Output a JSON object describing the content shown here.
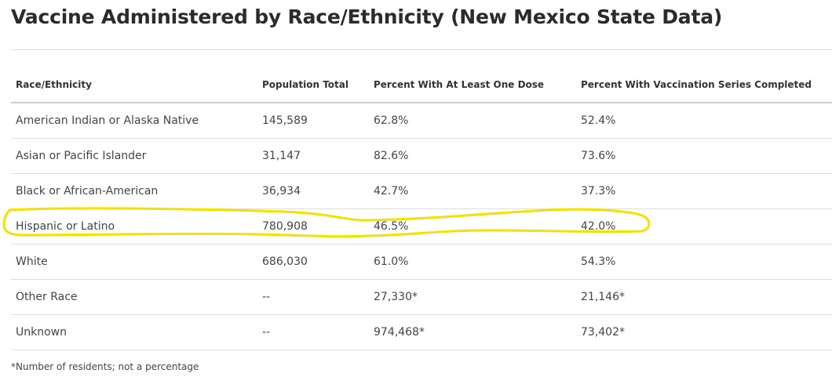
{
  "title": "Vaccine Administered by Race/Ethnicity (New Mexico State Data)",
  "table": {
    "headers": [
      "Race/Ethnicity",
      "Population Total",
      "Percent With At Least One Dose",
      "Percent With Vaccination Series Completed"
    ],
    "rows": [
      [
        "American Indian or Alaska Native",
        "145,589",
        "62.8%",
        "52.4%"
      ],
      [
        "Asian or Pacific Islander",
        "31,147",
        "82.6%",
        "73.6%"
      ],
      [
        "Black or African-American",
        "36,934",
        "42.7%",
        "37.3%"
      ],
      [
        "Hispanic or Latino",
        "780,908",
        "46.5%",
        "42.0%"
      ],
      [
        "White",
        "686,030",
        "61.0%",
        "54.3%"
      ],
      [
        "Other Race",
        "--",
        "27,330*",
        "21,146*"
      ],
      [
        "Unknown",
        "--",
        "974,468*",
        "73,402*"
      ]
    ]
  },
  "footnote": "*Number of residents; not a percentage",
  "annotation": {
    "highlighted_row": "Hispanic or Latino",
    "color": "#f2e200"
  }
}
